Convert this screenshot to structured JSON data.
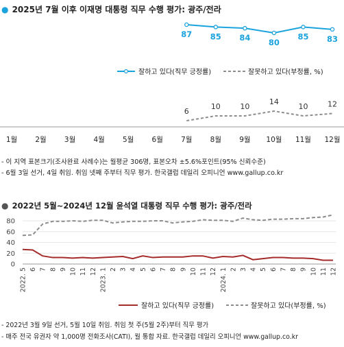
{
  "colors": {
    "positive_top": "#1aa3dd",
    "negative": "#8c8c8c",
    "positive_bottom": "#a52a2a",
    "grid": "#e6e6e6",
    "bullet": "#555555"
  },
  "top": {
    "bullet": "●",
    "title": "2025년 7월 이후 이재명 대통령 직무 수행 평가: 광주/전라",
    "legend_positive": "잘하고 있다(직무 긍정률)",
    "legend_negative": "잘못하고 있다(부정률, %)",
    "notes": [
      "- 이 지역 표본크기(조사완료 사례수)는 월평균 306명, 표본오차 ±5.6%포인트(95% 신뢰수준)",
      "- 6월 3일 선거, 4일 취임. 취임 넷째 주부터 직무 평가. 한국갤럽 데일리 오피니언 www.gallup.co.kr"
    ]
  },
  "bottom": {
    "bullet": "●",
    "title": "2022년 5월~2024년 12월 윤석열 대통령 직무 수행 평가: 광주/전라",
    "legend_positive": "잘하고 있다(직무 긍정률)",
    "legend_negative": "잘못하고 있다(부정률, %)",
    "notes": [
      "- 2022년 3월 9일 선거, 5월 10일 취임. 취임 첫 주(5월 2주)부터 직무 평가",
      "- 매주 전국 유권자 약 1,000명 전화조사(CATI), 월 통합 자료. 한국갤럽 데일리 오피니언 www.gallup.co.kr"
    ]
  },
  "chart_data": [
    {
      "type": "line",
      "title": "2025년 7월 이후 이재명 대통령 직무 수행 평가: 광주/전라",
      "categories": [
        "1월",
        "2월",
        "3월",
        "4월",
        "5월",
        "6월",
        "7월",
        "8월",
        "9월",
        "10월",
        "11월",
        "12월"
      ],
      "series": [
        {
          "name": "잘하고 있다(직무 긍정률)",
          "values": [
            null,
            null,
            null,
            null,
            null,
            null,
            87,
            85,
            84,
            80,
            85,
            83
          ]
        },
        {
          "name": "잘못하고 있다(부정률, %)",
          "values": [
            null,
            null,
            null,
            null,
            null,
            null,
            6,
            10,
            10,
            14,
            10,
            12
          ]
        }
      ],
      "data_labels": true,
      "legend": "middle-right",
      "grid": false
    },
    {
      "type": "line",
      "title": "2022년 5월~2024년 12월 윤석열 대통령 직무 수행 평가: 광주/전라",
      "x": [
        "2022. 5",
        "6",
        "7",
        "8",
        "9",
        "10",
        "11",
        "12",
        "2023. 1",
        "2",
        "3",
        "4",
        "5",
        "6",
        "7",
        "8",
        "9",
        "10",
        "11",
        "12",
        "2024. 1",
        "2",
        "3",
        "4",
        "5",
        "6",
        "7",
        "8",
        "9",
        "10",
        "11",
        "12"
      ],
      "yticks": [
        "0",
        "20",
        "40",
        "60",
        "80"
      ],
      "ylim": [
        0,
        90
      ],
      "series": [
        {
          "name": "잘하고 있다(직무 긍정률)",
          "values": [
            27,
            26,
            15,
            12,
            12,
            11,
            12,
            11,
            12,
            13,
            14,
            10,
            15,
            12,
            13,
            13,
            13,
            15,
            15,
            11,
            14,
            13,
            16,
            8,
            10,
            12,
            12,
            11,
            11,
            10,
            7,
            7
          ]
        },
        {
          "name": "잘못하고 있다(부정률, %)",
          "values": [
            53,
            54,
            74,
            79,
            79,
            80,
            79,
            81,
            81,
            76,
            78,
            79,
            79,
            80,
            80,
            76,
            78,
            79,
            82,
            81,
            81,
            79,
            85,
            82,
            81,
            83,
            83,
            84,
            84,
            86,
            87,
            91
          ]
        }
      ],
      "legend": "bottom",
      "grid": true
    }
  ]
}
